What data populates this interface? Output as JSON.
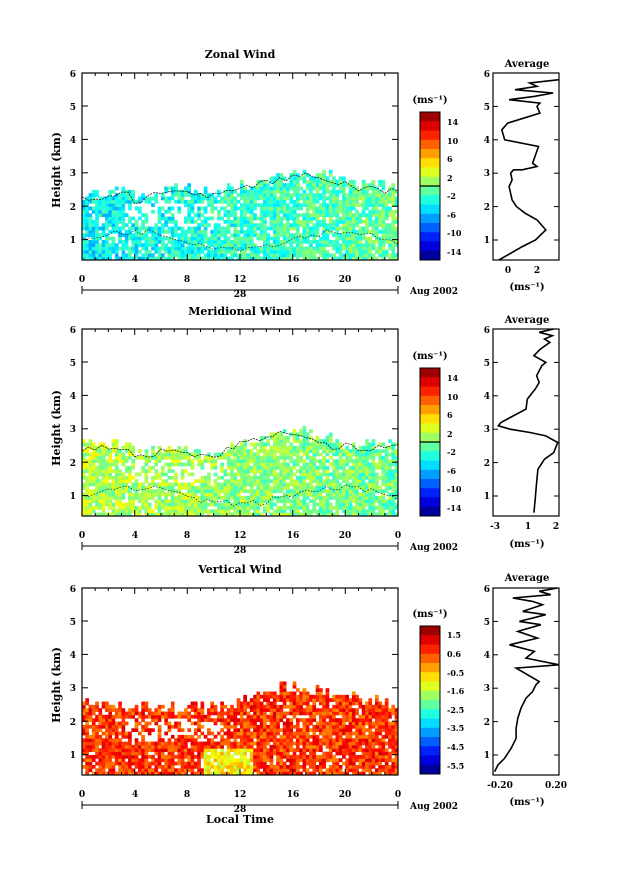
{
  "chart_data": [
    {
      "type": "heatmap",
      "title": "Zonal Wind",
      "ylabel": "Height (km)",
      "xlabel": "",
      "x_ticks": [
        "0",
        "4",
        "8",
        "12",
        "16",
        "20",
        "0"
      ],
      "y_ticks": [
        "1",
        "2",
        "3",
        "4",
        "5",
        "6"
      ],
      "xlim": [
        0,
        24
      ],
      "ylim": [
        0.4,
        6
      ],
      "date_label": "28",
      "month_label": "Aug 2002",
      "colorbar": {
        "unit": "(ms⁻¹)",
        "ticks": [
          "14",
          "10",
          "6",
          "2",
          "-2",
          "-6",
          "-10",
          "-14"
        ],
        "range": [
          -16,
          16
        ],
        "contour_value": 0
      },
      "field": {
        "max_height_by_hour": [
          2.3,
          2.3,
          2.4,
          2.4,
          2.2,
          2.4,
          2.5,
          2.5,
          2.5,
          2.4,
          2.4,
          2.5,
          2.6,
          2.7,
          2.8,
          2.9,
          3.0,
          3.0,
          2.9,
          2.8,
          2.7,
          2.6,
          2.6,
          2.5
        ],
        "mean_value": -2.5,
        "trend_per_hour": 0.15
      },
      "average_profile": {
        "title": "Average",
        "unit": "(ms⁻¹)",
        "x_ticks": [
          "0",
          "2"
        ],
        "xlim": [
          -1,
          3.5
        ],
        "ylim": [
          0.4,
          6
        ],
        "x": [
          -0.6,
          0.2,
          1.0,
          1.9,
          2.6,
          2.0,
          1.2,
          0.6,
          0.3,
          0.2,
          0.1,
          0.3,
          0.2,
          0.4,
          1.0,
          2.0,
          1.7,
          2.1,
          -0.2,
          -0.4,
          0.0,
          2.2,
          2.0,
          2.2,
          0.1,
          1.8,
          3.1,
          0.5,
          2.0,
          1.5,
          3.5
        ],
        "y": [
          0.4,
          0.6,
          0.8,
          1.0,
          1.3,
          1.6,
          1.8,
          2.0,
          2.2,
          2.4,
          2.6,
          2.8,
          3.0,
          3.1,
          3.1,
          3.2,
          3.3,
          3.8,
          4.0,
          4.3,
          4.5,
          4.8,
          5.0,
          5.1,
          5.2,
          5.3,
          5.4,
          5.5,
          5.6,
          5.7,
          5.8
        ]
      }
    },
    {
      "type": "heatmap",
      "title": "Meridional Wind",
      "ylabel": "Height (km)",
      "xlabel": "",
      "x_ticks": [
        "0",
        "4",
        "8",
        "12",
        "16",
        "20",
        "0"
      ],
      "y_ticks": [
        "1",
        "2",
        "3",
        "4",
        "5",
        "6"
      ],
      "xlim": [
        0,
        24
      ],
      "ylim": [
        0.4,
        6
      ],
      "date_label": "28",
      "month_label": "Aug 2002",
      "colorbar": {
        "unit": "(ms⁻¹)",
        "ticks": [
          "14",
          "10",
          "6",
          "2",
          "-2",
          "-6",
          "-10",
          "-14"
        ],
        "range": [
          -16,
          16
        ],
        "contour_value": 0
      },
      "field": {
        "max_height_by_hour": [
          2.5,
          2.5,
          2.5,
          2.4,
          2.3,
          2.3,
          2.4,
          2.4,
          2.3,
          2.2,
          2.3,
          2.5,
          2.6,
          2.7,
          2.8,
          2.9,
          2.9,
          2.8,
          2.7,
          2.5,
          2.6,
          2.5,
          2.5,
          2.5
        ],
        "mean_value": 0.5,
        "trend_per_hour": -0.1
      },
      "average_profile": {
        "title": "Average",
        "unit": "(ms⁻¹)",
        "x_ticks": [
          "-3",
          "1",
          "2"
        ],
        "xlim": [
          -3,
          2
        ],
        "ylim": [
          0.4,
          6
        ],
        "x": [
          0.1,
          0.2,
          0.3,
          0.4,
          0.9,
          1.6,
          1.9,
          1.0,
          -0.2,
          -1.7,
          -2.6,
          -2.4,
          -0.5,
          -0.4,
          0.2,
          0.5,
          0.3,
          0.7,
          1.0,
          0.1,
          0.6,
          1.3,
          0.9,
          1.5,
          0.5,
          1.6
        ],
        "y": [
          0.5,
          0.9,
          1.4,
          1.8,
          2.1,
          2.3,
          2.6,
          2.8,
          2.9,
          3.0,
          3.1,
          3.2,
          3.6,
          3.9,
          4.2,
          4.4,
          4.6,
          4.9,
          5.0,
          5.2,
          5.4,
          5.6,
          5.7,
          5.8,
          5.9,
          6.0
        ]
      }
    },
    {
      "type": "heatmap",
      "title": "Vertical Wind",
      "ylabel": "Height (km)",
      "xlabel": "Local Time",
      "x_ticks": [
        "0",
        "4",
        "8",
        "12",
        "16",
        "20",
        "0"
      ],
      "y_ticks": [
        "1",
        "2",
        "3",
        "4",
        "5",
        "6"
      ],
      "xlim": [
        0,
        24
      ],
      "ylim": [
        0.4,
        6
      ],
      "date_label": "28",
      "month_label": "Aug 2002",
      "colorbar": {
        "unit": "(ms⁻¹)",
        "ticks": [
          "1.5",
          "0.6",
          "-0.5",
          "-1.6",
          "-2.5",
          "-3.5",
          "-4.5",
          "-5.5"
        ],
        "range": [
          -6,
          2
        ]
      },
      "field": {
        "max_height_by_hour": [
          2.5,
          2.5,
          2.4,
          2.3,
          2.4,
          2.3,
          2.4,
          2.3,
          2.5,
          2.4,
          2.4,
          2.5,
          2.6,
          2.8,
          2.9,
          3.0,
          3.0,
          2.9,
          2.8,
          2.8,
          2.7,
          2.6,
          2.6,
          2.5
        ],
        "mean_value": 0.6,
        "trend_per_hour": 0.0
      },
      "average_profile": {
        "title": "Average",
        "unit": "(ms⁻¹)",
        "x_ticks": [
          "-0.20",
          "0.20"
        ],
        "xlim": [
          -0.2,
          0.2
        ],
        "ylim": [
          0.4,
          6
        ],
        "x": [
          -0.19,
          -0.17,
          -0.13,
          -0.09,
          -0.06,
          -0.06,
          -0.05,
          -0.03,
          0.0,
          0.04,
          0.06,
          0.08,
          -0.06,
          0.2,
          0.0,
          0.05,
          -0.1,
          0.07,
          -0.05,
          0.09,
          -0.04,
          0.12,
          -0.02,
          0.1,
          0.04,
          -0.08,
          0.15,
          0.08,
          0.19
        ],
        "y": [
          0.5,
          0.7,
          0.9,
          1.2,
          1.5,
          1.8,
          2.1,
          2.4,
          2.7,
          2.9,
          3.1,
          3.2,
          3.6,
          3.7,
          3.9,
          4.1,
          4.3,
          4.5,
          4.7,
          4.9,
          5.0,
          5.2,
          5.3,
          5.5,
          5.6,
          5.7,
          5.8,
          5.9,
          6.0
        ]
      }
    }
  ]
}
